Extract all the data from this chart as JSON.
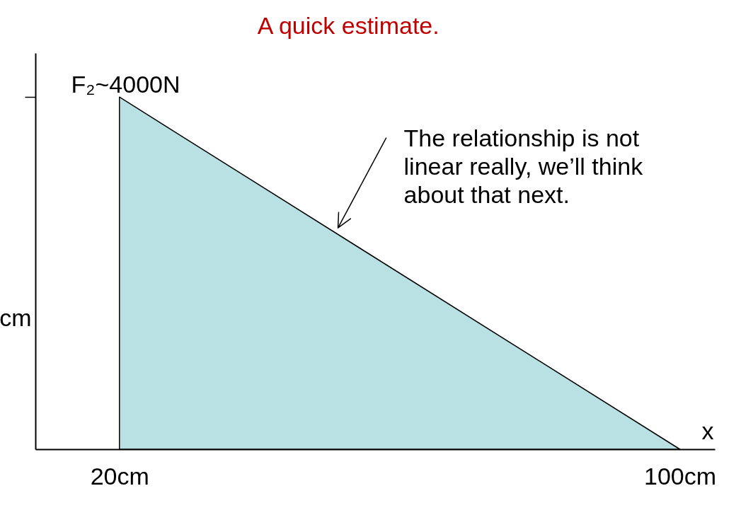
{
  "chart_data": {
    "type": "area",
    "title": "A quick estimate.",
    "xlabel": "x",
    "ylabel": "cm",
    "x": [
      20,
      100
    ],
    "values": [
      4000,
      0
    ],
    "color": "#b9e0e2",
    "xlim": [
      8,
      105
    ],
    "xticks": [
      {
        "value": 20,
        "label": "20cm"
      },
      {
        "value": 100,
        "label": "100cm"
      }
    ],
    "ylim": [
      0,
      4500
    ],
    "yticks": [
      {
        "value": 4000,
        "label": "F₂~4000N"
      }
    ],
    "annotations": [
      {
        "text": "The relationship is not linear really, we’ll think about that next.",
        "x": 51,
        "y": 2450
      }
    ]
  }
}
